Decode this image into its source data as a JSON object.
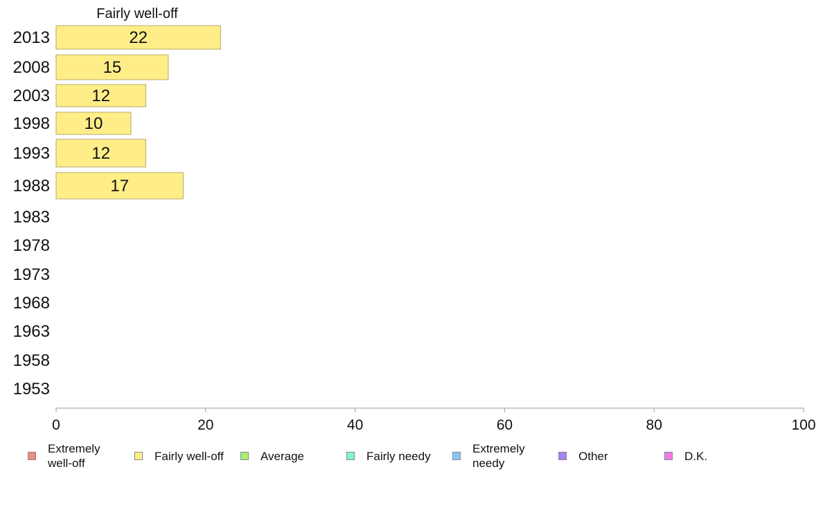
{
  "chart_data": {
    "type": "bar",
    "orientation": "horizontal",
    "title": "Fairly well-off",
    "categories": [
      "2013",
      "2008",
      "2003",
      "1998",
      "1993",
      "1988",
      "1983",
      "1978",
      "1973",
      "1968",
      "1963",
      "1958",
      "1953"
    ],
    "series": [
      {
        "name": "Fairly well-off",
        "color": "#ffee88",
        "values": [
          22,
          15,
          12,
          10,
          12,
          17,
          null,
          null,
          null,
          null,
          null,
          null,
          null
        ]
      }
    ],
    "data_labels": [
      "22",
      "15",
      "12",
      "10",
      "12",
      "17",
      "",
      "",
      "",
      "",
      "",
      "",
      ""
    ],
    "xlim": [
      0,
      100
    ],
    "xticks": [
      "0",
      "20",
      "40",
      "60",
      "80",
      "100"
    ],
    "xlabel": "",
    "ylabel": "",
    "grid": false,
    "legend_position": "bottom"
  },
  "legend": [
    {
      "label": "Extremely well-off",
      "color": "#f28a8a"
    },
    {
      "label": "Fairly well-off",
      "color": "#ffee88"
    },
    {
      "label": "Average",
      "color": "#a2f07a"
    },
    {
      "label": "Fairly needy",
      "color": "#80f7c6"
    },
    {
      "label": "Extremely needy",
      "color": "#88c8f5"
    },
    {
      "label": "Other",
      "color": "#a383f2"
    },
    {
      "label": "D.K.",
      "color": "#f47ae6"
    }
  ]
}
